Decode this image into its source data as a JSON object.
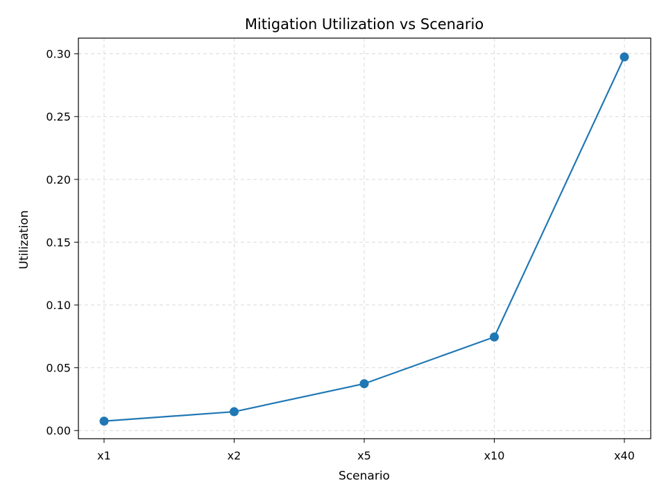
{
  "chart_data": {
    "type": "line",
    "title": "Mitigation Utilization vs Scenario",
    "xlabel": "Scenario",
    "ylabel": "Utilization",
    "categories": [
      "x1",
      "x2",
      "x5",
      "x10",
      "x40"
    ],
    "series": [
      {
        "values": [
          0.0075,
          0.015,
          0.0373,
          0.0745,
          0.2975
        ],
        "color": "#1f77b4",
        "marker": "circle"
      }
    ],
    "ylim": [
      -0.0065,
      0.3125
    ],
    "yticks": [
      0.0,
      0.05,
      0.1,
      0.15,
      0.2,
      0.25,
      0.3
    ],
    "ytick_labels": [
      "0.00",
      "0.05",
      "0.10",
      "0.15",
      "0.20",
      "0.25",
      "0.30"
    ],
    "grid": true,
    "grid_style": "dashed"
  }
}
